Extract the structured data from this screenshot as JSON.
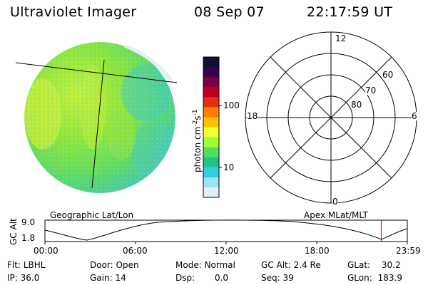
{
  "header": {
    "title": "Ultraviolet Imager",
    "date": "08 Sep 07",
    "time": "22:17:59 UT"
  },
  "colorbar": {
    "unit_label": "photon cm⁻²s⁻¹",
    "unit_prefix": "photon cm",
    "sup1": "-2",
    "mid": "s",
    "sup2": "-1",
    "ticks": [
      "100",
      "10"
    ],
    "colors_top_to_bottom": [
      "#101030",
      "#3a0050",
      "#7a0040",
      "#c00020",
      "#e03010",
      "#ff7f00",
      "#ffc000",
      "#f0ff30",
      "#a0ff30",
      "#50e060",
      "#20c090",
      "#30d0e0",
      "#a0e0f0",
      "#e0f0f8"
    ]
  },
  "polar_plot": {
    "mlt_labels": {
      "top": "12",
      "left": "18",
      "right": "6",
      "bottom": "0"
    },
    "lat_labels": [
      "60",
      "70",
      "80"
    ]
  },
  "timeline": {
    "ylabel": "GC Alt",
    "yticks": [
      "9.0",
      "1.8"
    ],
    "left_title": "Geographic Lat/Lon",
    "right_title": "Apex MLat/MLT",
    "xticks": [
      "00:00",
      "06:00",
      "12:00",
      "18:00",
      "23:59"
    ],
    "marker_fraction": 0.928,
    "marker_color": "#c00000"
  },
  "status": {
    "row1": [
      {
        "label": "Flt:",
        "value": "LBHL"
      },
      {
        "label": "Door:",
        "value": "Open"
      },
      {
        "label": "Mode:",
        "value": "Normal"
      },
      {
        "label": "GC Alt:",
        "value": "2.4 Re"
      },
      {
        "label": "GLat:",
        "value": "30.2"
      }
    ],
    "row2": [
      {
        "label": "IP:",
        "value": "36.0"
      },
      {
        "label": "Gain:",
        "value": "14"
      },
      {
        "label": "Dsp:",
        "value": "0.0"
      },
      {
        "label": "Seq:",
        "value": "39"
      },
      {
        "label": "GLon:",
        "value": "183.9"
      }
    ]
  },
  "colors": {
    "image_green": "#7fe83a",
    "image_cyan": "#3fd0c0",
    "image_yellow": "#d8f03a"
  }
}
